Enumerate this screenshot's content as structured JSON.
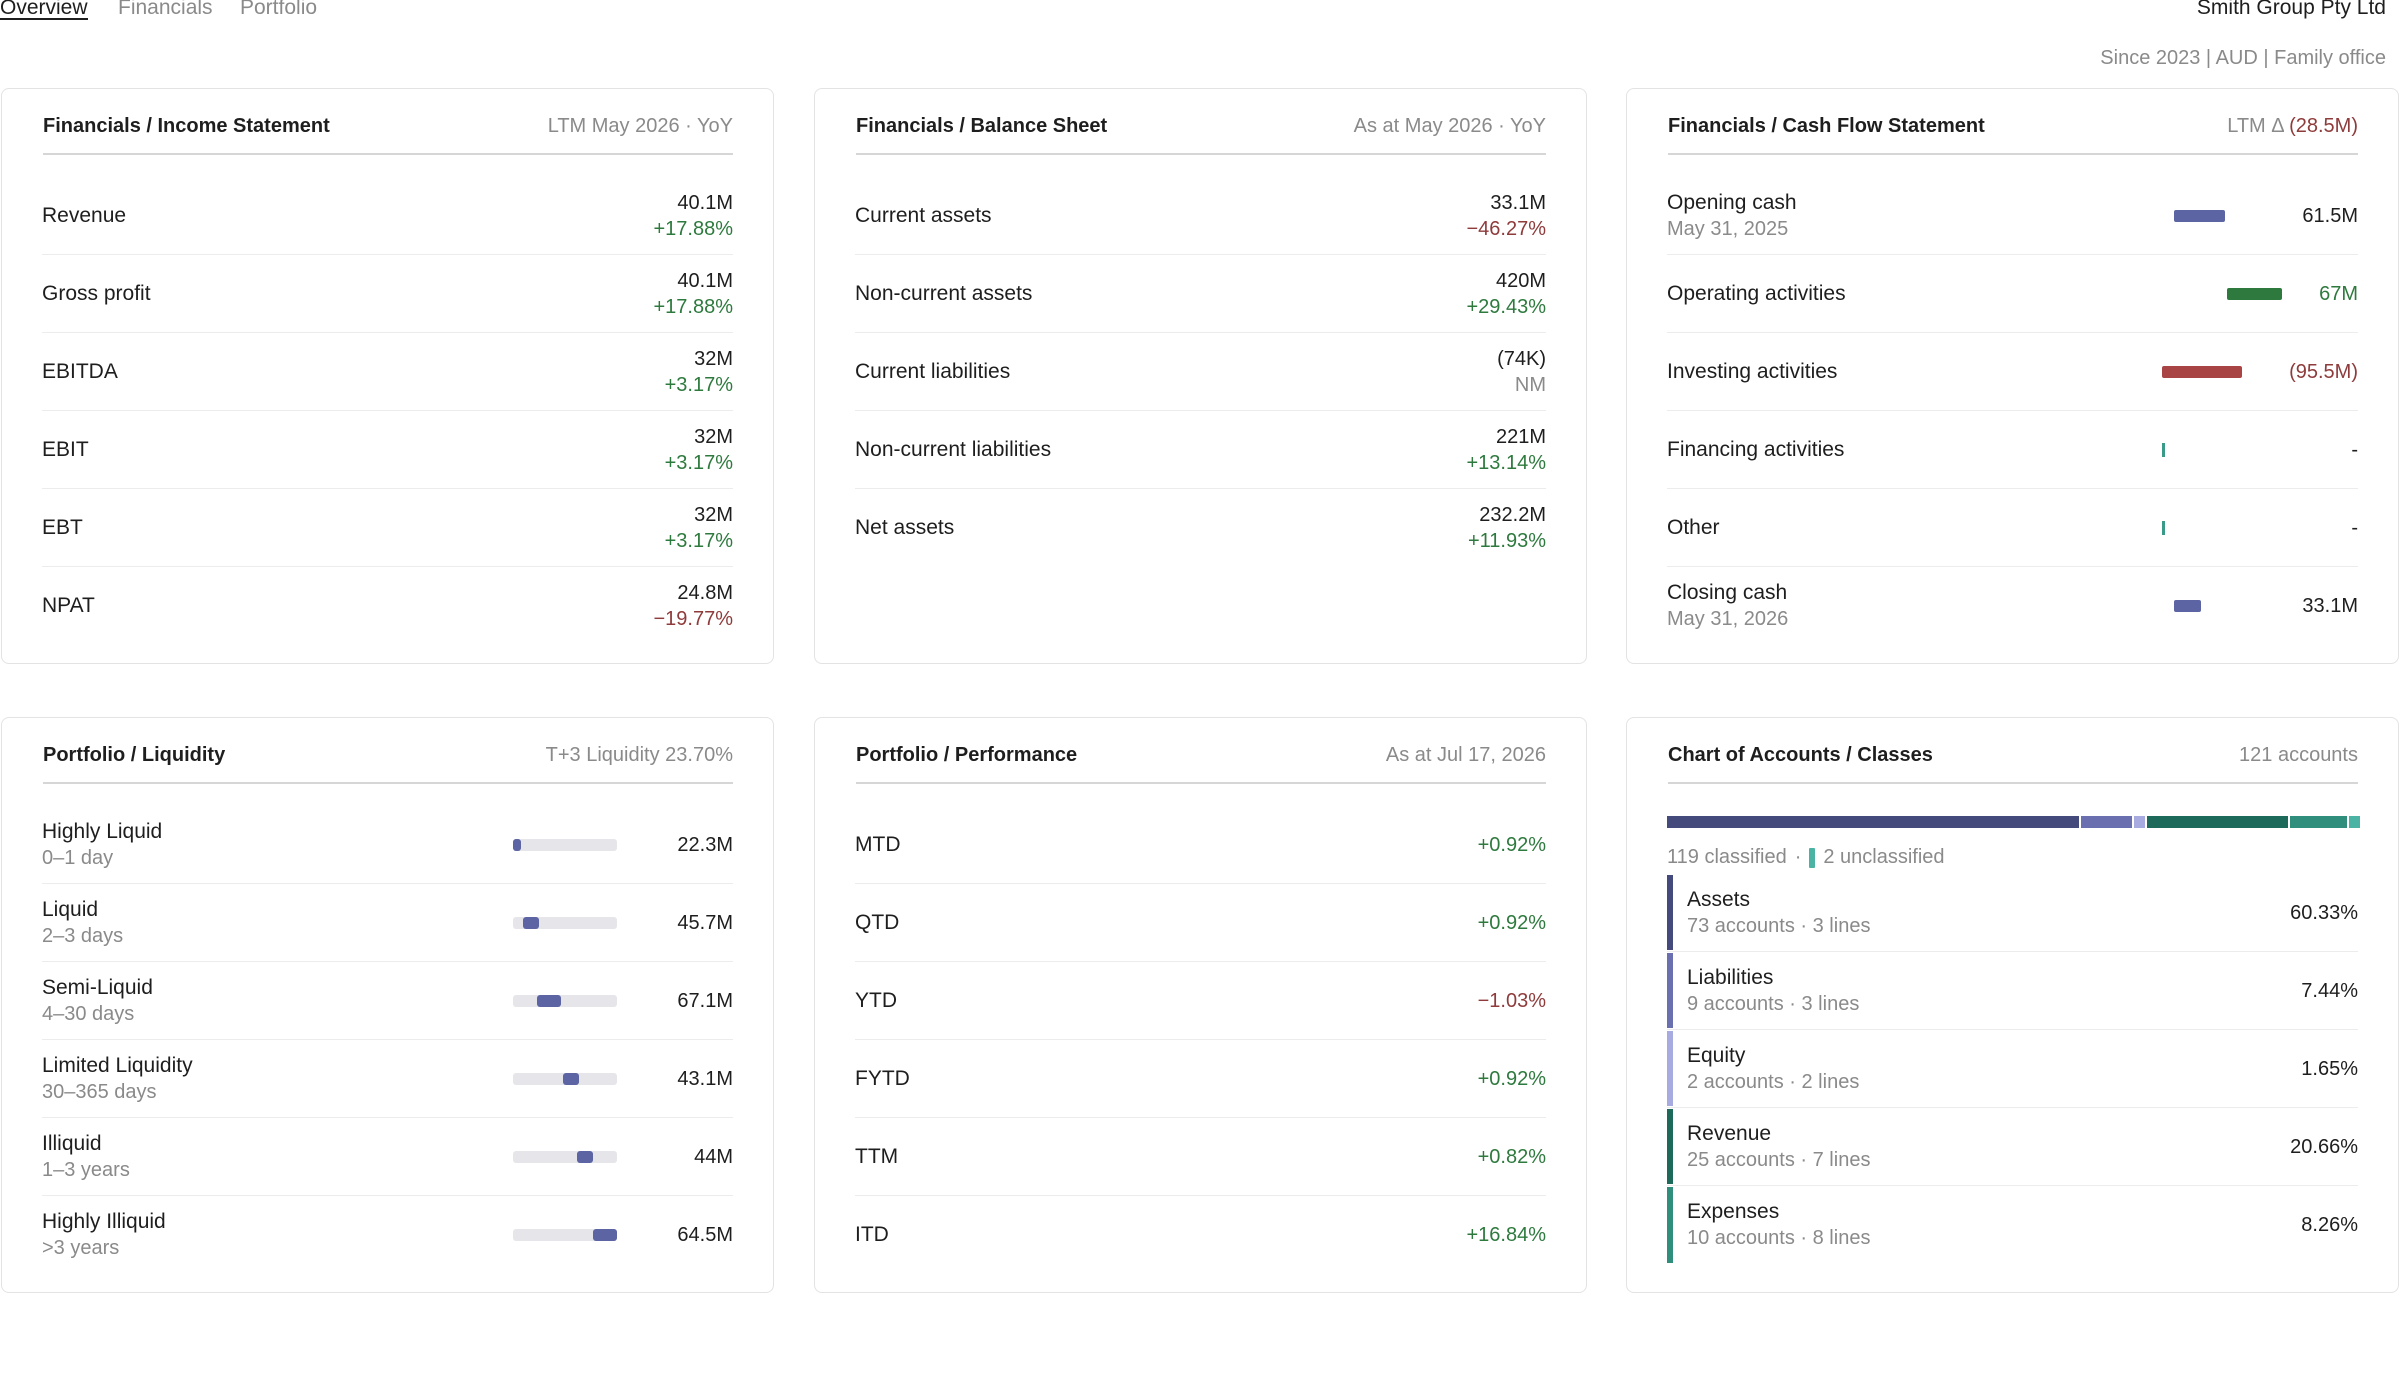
{
  "nav": {
    "tabs": [
      "Overview",
      "Financials",
      "Portfolio"
    ],
    "active_tab": "Overview",
    "entity_name": "Smith Group Pty Ltd",
    "entity_info": "Since 2023 | AUD | Family office"
  },
  "income": {
    "title": "Financials / Income Statement",
    "meta": "LTM May 2026 · YoY",
    "rows": [
      {
        "label": "Revenue",
        "value": "40.1M",
        "change": "+17.88%"
      },
      {
        "label": "Gross profit",
        "value": "40.1M",
        "change": "+17.88%"
      },
      {
        "label": "EBITDA",
        "value": "32M",
        "change": "+3.17%"
      },
      {
        "label": "EBIT",
        "value": "32M",
        "change": "+3.17%"
      },
      {
        "label": "EBT",
        "value": "32M",
        "change": "+3.17%"
      },
      {
        "label": "NPAT",
        "value": "24.8M",
        "change": "−19.77%"
      }
    ]
  },
  "balance": {
    "title": "Financials / Balance Sheet",
    "meta": "As at May 2026 · YoY",
    "rows": [
      {
        "label": "Current assets",
        "value": "33.1M",
        "change": "−46.27%"
      },
      {
        "label": "Non-current assets",
        "value": "420M",
        "change": "+29.43%"
      },
      {
        "label": "Current liabilities",
        "value": "(74K)",
        "change": "NM"
      },
      {
        "label": "Non-current liabilities",
        "value": "221M",
        "change": "+13.14%"
      },
      {
        "label": "Net assets",
        "value": "232.2M",
        "change": "+11.93%"
      }
    ]
  },
  "cashflow": {
    "title": "Financials / Cash Flow Statement",
    "meta_prefix": "LTM Δ",
    "meta_value": "(28.5M)",
    "rows": [
      {
        "label": "Opening cash",
        "sub": "May 31, 2025",
        "value": "61.5M"
      },
      {
        "label": "Operating activities",
        "sub": "",
        "value": "67M"
      },
      {
        "label": "Investing activities",
        "sub": "",
        "value": "(95.5M)"
      },
      {
        "label": "Financing activities",
        "sub": "",
        "value": "-"
      },
      {
        "label": "Other",
        "sub": "",
        "value": "-"
      },
      {
        "label": "Closing cash",
        "sub": "May 31, 2026",
        "value": "33.1M"
      }
    ],
    "colors": {
      "balance": "#5c64a3",
      "inflow": "#2e7a3e",
      "outflow": "#a84444",
      "zero": "#3a9a8a"
    }
  },
  "liquidity": {
    "title": "Portfolio / Liquidity",
    "meta": "T+3 Liquidity 23.70%",
    "rows": [
      {
        "label": "Highly Liquid",
        "sub": "0–1 day",
        "value": "22.3M"
      },
      {
        "label": "Liquid",
        "sub": "2–3 days",
        "value": "45.7M"
      },
      {
        "label": "Semi-Liquid",
        "sub": "4–30 days",
        "value": "67.1M"
      },
      {
        "label": "Limited Liquidity",
        "sub": "30–365 days",
        "value": "43.1M"
      },
      {
        "label": "Illiquid",
        "sub": "1–3 years",
        "value": "44M"
      },
      {
        "label": "Highly Illiquid",
        "sub": ">3 years",
        "value": "64.5M"
      }
    ]
  },
  "performance": {
    "title": "Portfolio / Performance",
    "meta": "As at Jul 17, 2026",
    "rows": [
      {
        "label": "MTD",
        "value": "+0.92%"
      },
      {
        "label": "QTD",
        "value": "+0.92%"
      },
      {
        "label": "YTD",
        "value": "−1.03%"
      },
      {
        "label": "FYTD",
        "value": "+0.92%"
      },
      {
        "label": "TTM",
        "value": "+0.82%"
      },
      {
        "label": "ITD",
        "value": "+16.84%"
      }
    ]
  },
  "accounts": {
    "title": "Chart of Accounts / Classes",
    "meta": "121 accounts",
    "classified": "119 classified",
    "separator": "·",
    "unclassified": "2 unclassified",
    "classes": [
      {
        "label": "Assets",
        "sub": "73 accounts · 3 lines",
        "value": "60.33%",
        "color": "#454a7c"
      },
      {
        "label": "Liabilities",
        "sub": "9 accounts · 3 lines",
        "value": "7.44%",
        "color": "#6a6fb0"
      },
      {
        "label": "Equity",
        "sub": "2 accounts · 2 lines",
        "value": "1.65%",
        "color": "#a7abe0"
      },
      {
        "label": "Revenue",
        "sub": "25 accounts · 7 lines",
        "value": "20.66%",
        "color": "#1d6a5a"
      },
      {
        "label": "Expenses",
        "sub": "10 accounts · 8 lines",
        "value": "8.26%",
        "color": "#2f8f7c"
      }
    ],
    "unclassified_color": "#4bb3a3"
  }
}
